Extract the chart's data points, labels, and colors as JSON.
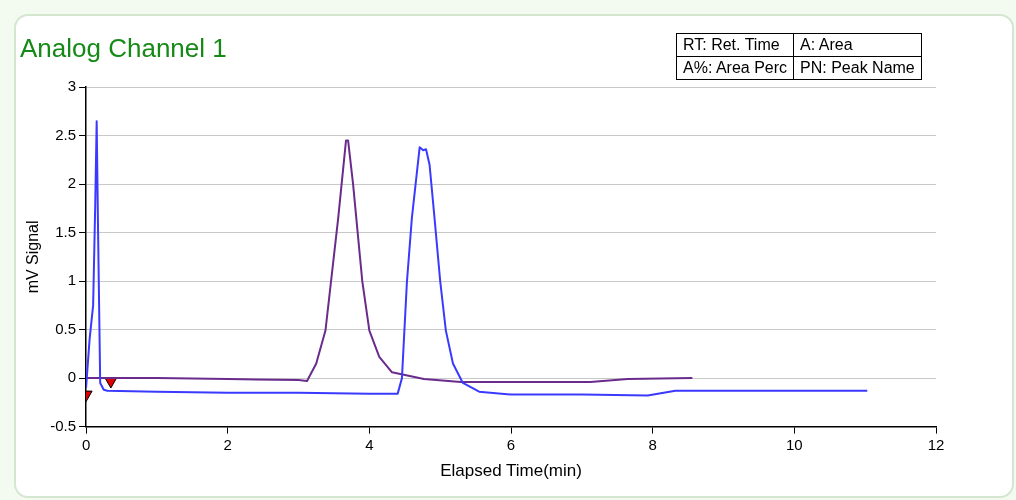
{
  "chart_data": {
    "type": "line",
    "title": "Analog Channel 1",
    "xlabel": "Elapsed Time(min)",
    "ylabel": "mV Signal",
    "annotations": [
      "RT: Ret. Time",
      "A: Area",
      "A%: Area Perc",
      "PN: Peak Name"
    ],
    "xlim": [
      0,
      12
    ],
    "xticks": [
      0,
      2,
      4,
      6,
      8,
      10,
      12
    ],
    "ylim": [
      -0.5,
      3
    ],
    "yticks": [
      -0.5,
      0,
      0.5,
      1,
      1.5,
      2,
      2.5,
      3
    ],
    "grid": "y",
    "legend": false,
    "marker": "none",
    "line_style": "solid",
    "series": [
      {
        "color": "#3a3aff",
        "x": [
          0,
          0.05,
          0.1,
          0.13,
          0.15,
          0.17,
          0.2,
          0.25,
          0.3,
          1.0,
          2.0,
          3.0,
          4.0,
          4.4,
          4.46,
          4.53,
          4.6,
          4.71,
          4.76,
          4.8,
          4.85,
          4.92,
          5.0,
          5.08,
          5.18,
          5.32,
          5.55,
          6.0,
          7.0,
          7.93,
          8.32,
          9.0,
          10.0,
          11.03
        ],
        "values": [
          -0.1,
          0.4,
          0.75,
          1.8,
          2.65,
          1.5,
          -0.05,
          -0.12,
          -0.13,
          -0.14,
          -0.15,
          -0.15,
          -0.16,
          -0.16,
          0.0,
          0.99,
          1.65,
          2.38,
          2.35,
          2.36,
          2.2,
          1.65,
          1.0,
          0.49,
          0.15,
          -0.05,
          -0.14,
          -0.17,
          -0.17,
          -0.18,
          -0.13,
          -0.13,
          -0.13,
          -0.13
        ]
      },
      {
        "color": "#6a2c8c",
        "x": [
          0,
          1.0,
          2.0,
          3.0,
          3.12,
          3.25,
          3.38,
          3.56,
          3.67,
          3.7,
          3.77,
          3.9,
          4.0,
          4.14,
          4.32,
          4.77,
          5.29,
          6.0,
          7.12,
          7.65,
          8.56
        ],
        "values": [
          0,
          0,
          -0.01,
          -0.02,
          -0.03,
          0.15,
          0.49,
          1.65,
          2.45,
          2.45,
          2.0,
          1.0,
          0.49,
          0.22,
          0.06,
          -0.01,
          -0.04,
          -0.04,
          -0.04,
          -0.01,
          0
        ]
      },
      {
        "type": "scatter",
        "marker": "triangle",
        "color": "#e00000",
        "x": [
          0,
          0.35
        ],
        "values": [
          -0.17,
          -0.03
        ]
      }
    ]
  }
}
